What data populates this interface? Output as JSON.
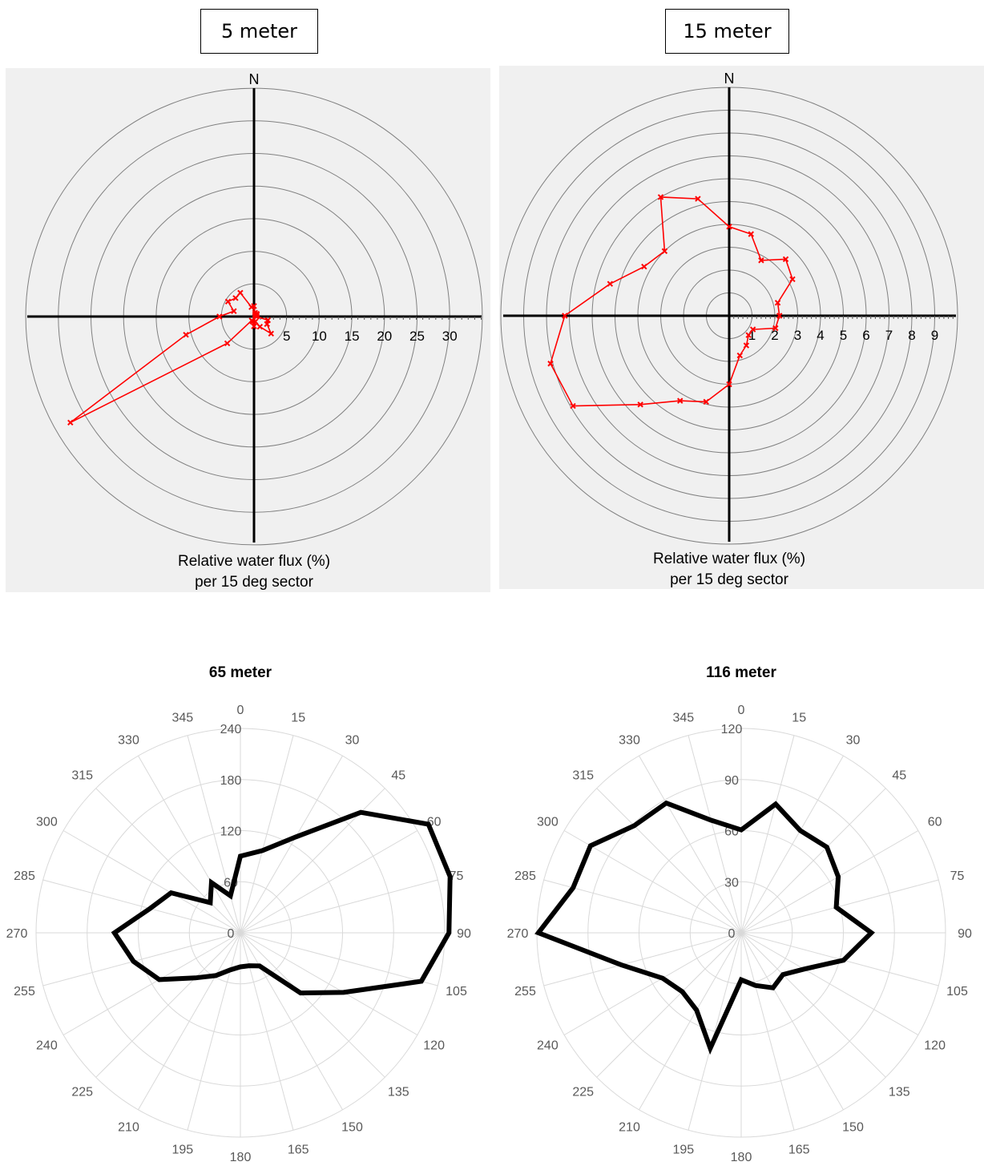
{
  "chart_data": [
    {
      "type": "polar-line",
      "title": "5 meter",
      "direction_label": "N",
      "xlabel": "Relative water flux (%)",
      "xlabel2": "per 15 deg sector",
      "radial_ticks": [
        "5",
        "10",
        "15",
        "20",
        "25",
        "30"
      ],
      "rmax": 35,
      "series_color": "#ff0000",
      "points": [
        {
          "angle": 0,
          "value": 1.6
        },
        {
          "angle": 15,
          "value": 0.6
        },
        {
          "angle": 30,
          "value": 0.3
        },
        {
          "angle": 45,
          "value": 0.6
        },
        {
          "angle": 60,
          "value": 0.5
        },
        {
          "angle": 75,
          "value": 0.3
        },
        {
          "angle": 90,
          "value": 0.4
        },
        {
          "angle": 105,
          "value": 2.2
        },
        {
          "angle": 120,
          "value": 2.3
        },
        {
          "angle": 135,
          "value": 3.7
        },
        {
          "angle": 150,
          "value": 1.8
        },
        {
          "angle": 165,
          "value": 0.8
        },
        {
          "angle": 180,
          "value": 1.5
        },
        {
          "angle": 195,
          "value": 0.8
        },
        {
          "angle": 210,
          "value": 0.7
        },
        {
          "angle": 225,
          "value": 5.8
        },
        {
          "angle": 240,
          "value": 32.5
        },
        {
          "angle": 255,
          "value": 10.8
        },
        {
          "angle": 270,
          "value": 5.3
        },
        {
          "angle": 285,
          "value": 3.2
        },
        {
          "angle": 300,
          "value": 4.6
        },
        {
          "angle": 315,
          "value": 4.0
        },
        {
          "angle": 330,
          "value": 4.2
        },
        {
          "angle": 345,
          "value": 1.5
        }
      ]
    },
    {
      "type": "polar-line",
      "title": "15 meter",
      "direction_label": "N",
      "xlabel": "Relative water flux (%)",
      "xlabel2": "per 15 deg sector",
      "radial_ticks": [
        "1",
        "2",
        "3",
        "4",
        "5",
        "6",
        "7",
        "8",
        "9"
      ],
      "rmax": 10,
      "series_color": "#ff0000",
      "points": [
        {
          "angle": 0,
          "value": 3.9
        },
        {
          "angle": 15,
          "value": 3.7
        },
        {
          "angle": 30,
          "value": 2.8
        },
        {
          "angle": 45,
          "value": 3.5
        },
        {
          "angle": 60,
          "value": 3.2
        },
        {
          "angle": 75,
          "value": 2.2
        },
        {
          "angle": 90,
          "value": 2.2
        },
        {
          "angle": 105,
          "value": 2.1
        },
        {
          "angle": 120,
          "value": 1.2
        },
        {
          "angle": 135,
          "value": 1.2
        },
        {
          "angle": 150,
          "value": 1.5
        },
        {
          "angle": 165,
          "value": 1.8
        },
        {
          "angle": 180,
          "value": 3.0
        },
        {
          "angle": 195,
          "value": 3.9
        },
        {
          "angle": 210,
          "value": 4.3
        },
        {
          "angle": 225,
          "value": 5.5
        },
        {
          "angle": 240,
          "value": 7.9
        },
        {
          "angle": 255,
          "value": 8.1
        },
        {
          "angle": 270,
          "value": 7.2
        },
        {
          "angle": 285,
          "value": 5.4
        },
        {
          "angle": 300,
          "value": 4.3
        },
        {
          "angle": 315,
          "value": 4.0
        },
        {
          "angle": 330,
          "value": 6.0
        },
        {
          "angle": 345,
          "value": 5.3
        }
      ]
    },
    {
      "type": "radar",
      "title": "65 meter",
      "angle_labels": [
        "0",
        "15",
        "30",
        "45",
        "60",
        "75",
        "90",
        "105",
        "120",
        "135",
        "150",
        "165",
        "180",
        "195",
        "210",
        "225",
        "240",
        "255",
        "270",
        "285",
        "300",
        "315",
        "330",
        "345"
      ],
      "radial_ticks": [
        0,
        60,
        120,
        180,
        240
      ],
      "rmax": 240,
      "series_color": "#000000",
      "values": [
        90,
        100,
        130,
        200,
        255,
        255,
        245,
        220,
        140,
        100,
        45,
        40,
        40,
        45,
        58,
        75,
        110,
        130,
        148,
        110,
        94,
        50,
        68,
        45
      ]
    },
    {
      "type": "radar",
      "title": "116 meter",
      "angle_labels": [
        "0",
        "15",
        "30",
        "45",
        "60",
        "75",
        "90",
        "105",
        "120",
        "135",
        "150",
        "165",
        "180",
        "195",
        "210",
        "225",
        "240",
        "255",
        "270",
        "285",
        "300",
        "315",
        "330",
        "345"
      ],
      "radial_ticks": [
        0,
        30,
        60,
        90,
        120
      ],
      "rmax": 135,
      "series_color": "#000000",
      "values": [
        68,
        88,
        78,
        80,
        74,
        65,
        86,
        70,
        48,
        39,
        42,
        36,
        31,
        79,
        59,
        55,
        60,
        82,
        134,
        115,
        115,
        100,
        99,
        77
      ]
    }
  ]
}
